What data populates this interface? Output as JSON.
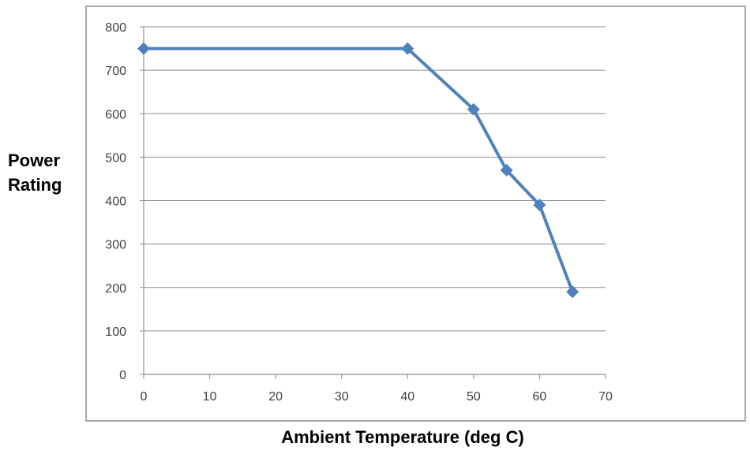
{
  "chart_data": {
    "type": "line",
    "title": "",
    "xlabel": "Ambient Temperature (deg C)",
    "ylabel_lines": [
      "Power",
      "Rating"
    ],
    "xlim": [
      0,
      70
    ],
    "ylim": [
      0,
      800
    ],
    "x_ticks": [
      0,
      10,
      20,
      30,
      40,
      50,
      60,
      70
    ],
    "y_ticks": [
      0,
      100,
      200,
      300,
      400,
      500,
      600,
      700,
      800
    ],
    "grid": "horizontal",
    "legend": "none",
    "series": [
      {
        "color": "#4F81BD",
        "marker": "diamond",
        "x": [
          0,
          40,
          50,
          55,
          60,
          65
        ],
        "y": [
          750,
          750,
          610,
          470,
          390,
          190
        ]
      }
    ]
  }
}
